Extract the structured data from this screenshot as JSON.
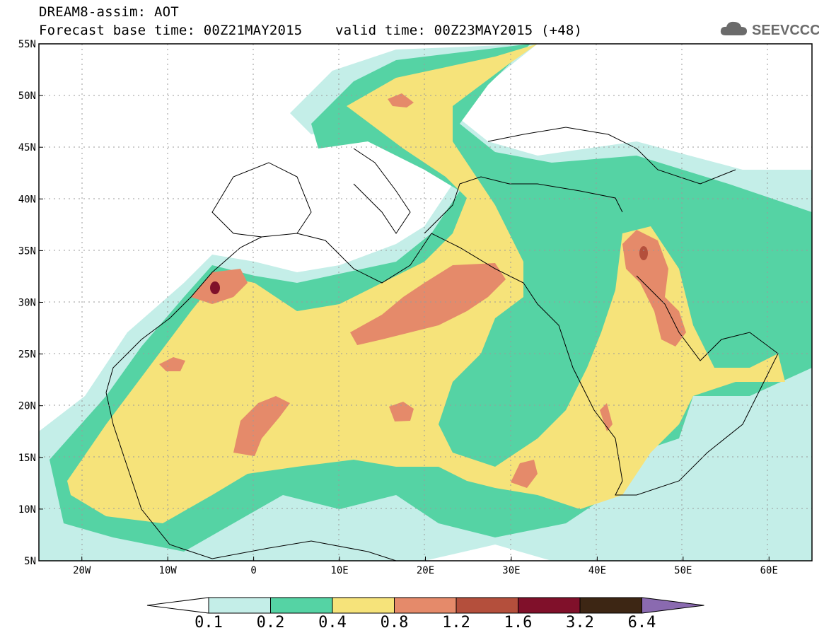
{
  "header": {
    "title_line1": "DREAM8-assim: AOT",
    "base_time_label": "Forecast base time: 00Z21MAY2015",
    "valid_time_label": "valid time: 00Z23MAY2015 (+48)"
  },
  "logo": {
    "text": "SEEVCCC",
    "icon": "cloud-icon"
  },
  "map": {
    "lon_range": [
      -25,
      65
    ],
    "lat_range": [
      5,
      55
    ],
    "lat_ticks": [
      "5N",
      "10N",
      "15N",
      "20N",
      "25N",
      "30N",
      "35N",
      "40N",
      "45N",
      "50N",
      "55N"
    ],
    "lon_ticks": [
      "20W",
      "10W",
      "0",
      "10E",
      "20E",
      "30E",
      "40E",
      "50E",
      "60E"
    ]
  },
  "legend": {
    "thresholds": [
      "0.1",
      "0.2",
      "0.4",
      "0.8",
      "1.2",
      "1.6",
      "3.2",
      "6.4"
    ],
    "colors": [
      "#ffffff",
      "#c4eee8",
      "#55d3a4",
      "#f6e37a",
      "#e58a6a",
      "#b44f3c",
      "#80102a",
      "#3d2614",
      "#8a6ab0"
    ]
  }
}
